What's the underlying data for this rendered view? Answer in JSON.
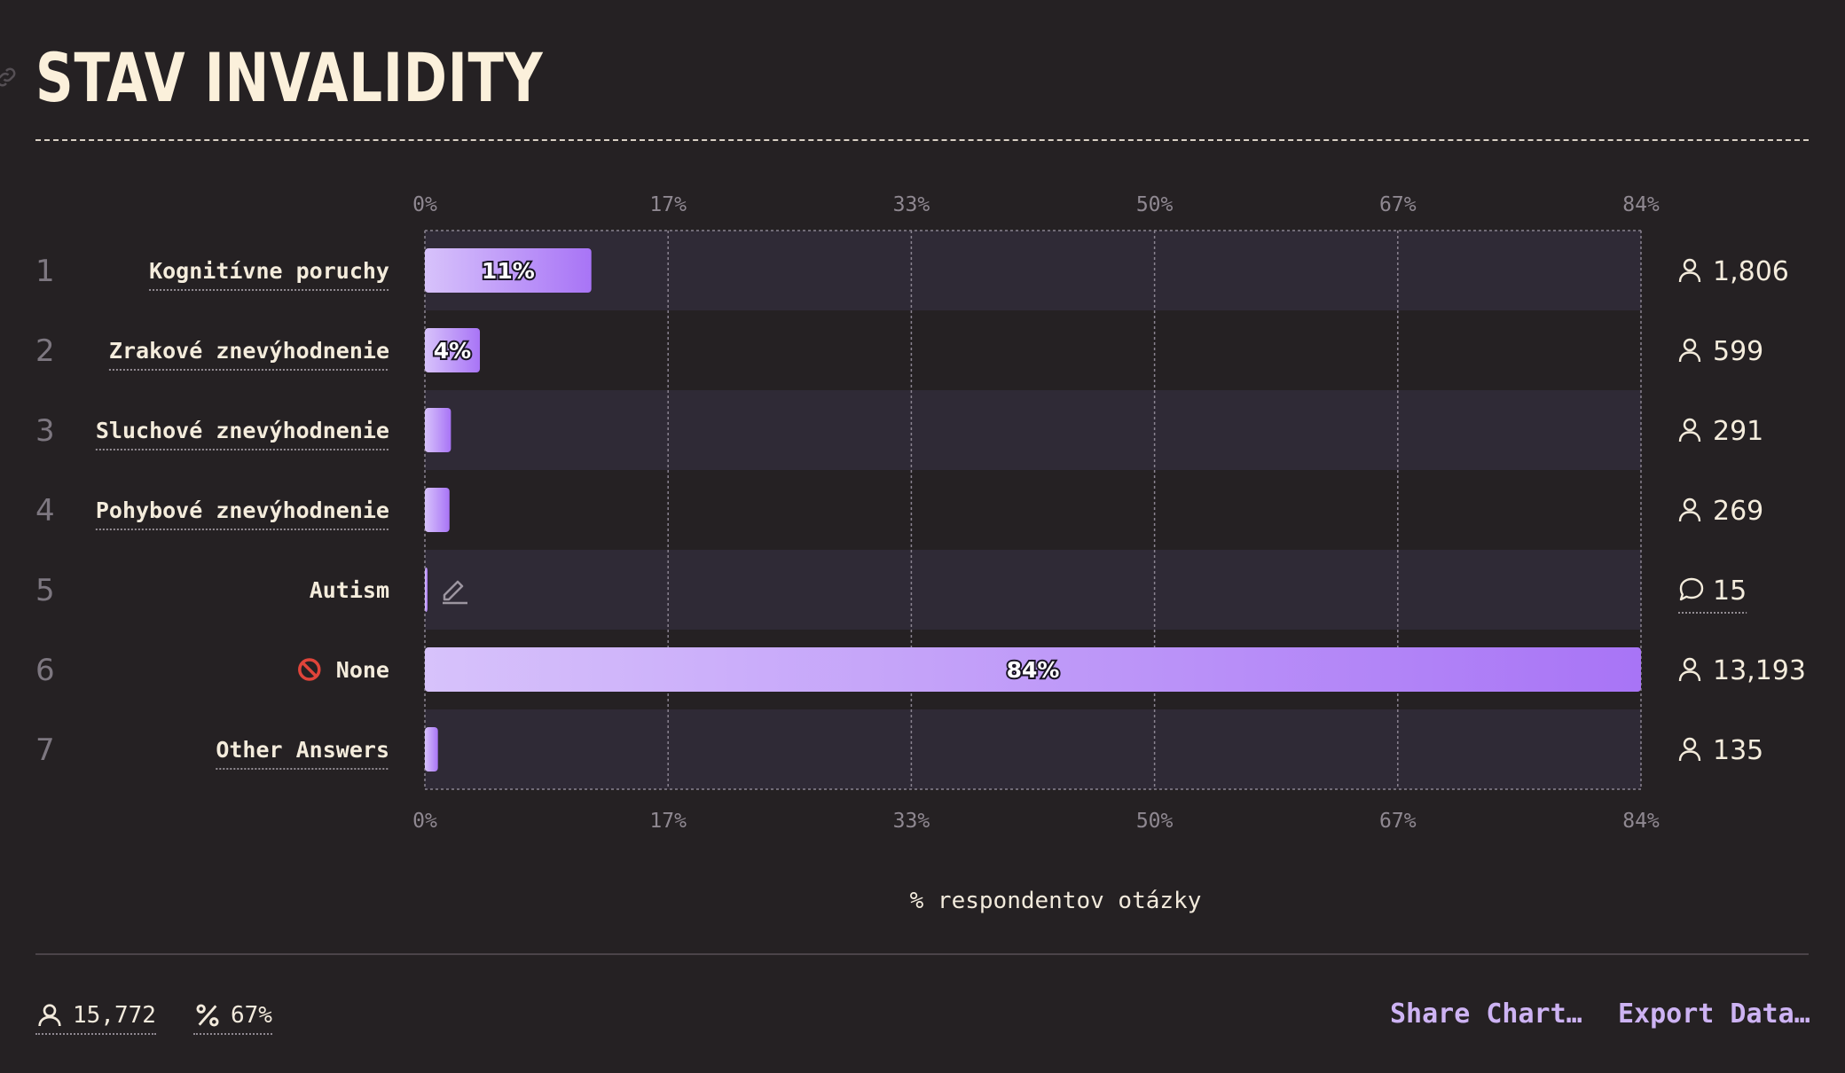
{
  "title": "STAV INVALIDITY",
  "chart_data": {
    "type": "bar",
    "orientation": "horizontal",
    "xlim": [
      0,
      84
    ],
    "x_ticks": [
      "0%",
      "17%",
      "33%",
      "50%",
      "67%",
      "84%"
    ],
    "xlabel": "% respondentov otázky",
    "categories": [
      {
        "rank": "1",
        "label": "Kognitívne poruchy",
        "percent": 11.5,
        "pct_label": "11%",
        "count": "1,806",
        "count_icon": "user-icon"
      },
      {
        "rank": "2",
        "label": "Zrakové znevýhodnenie",
        "percent": 3.8,
        "pct_label": "4%",
        "count": "599",
        "count_icon": "user-icon"
      },
      {
        "rank": "3",
        "label": "Sluchové znevýhodnenie",
        "percent": 1.8,
        "pct_label": "",
        "count": "291",
        "count_icon": "user-icon"
      },
      {
        "rank": "4",
        "label": "Pohybové znevýhodnenie",
        "percent": 1.7,
        "pct_label": "",
        "count": "269",
        "count_icon": "user-icon"
      },
      {
        "rank": "5",
        "label": "Autism",
        "percent": 0.1,
        "pct_label": "",
        "count": "15",
        "count_icon": "comment-icon"
      },
      {
        "rank": "6",
        "label": "None",
        "percent": 84,
        "pct_label": "84%",
        "count": "13,193",
        "count_icon": "user-icon"
      },
      {
        "rank": "7",
        "label": "Other Answers",
        "percent": 0.9,
        "pct_label": "",
        "count": "135",
        "count_icon": "user-icon"
      }
    ],
    "grid": true
  },
  "footer": {
    "respondents": "15,772",
    "percent": "67%",
    "share_label": "Share Chart…",
    "export_label": "Export Data…"
  },
  "colors": {
    "background": "#252123",
    "row_band": "#2f2a36",
    "bar_start": "#d7c2fb",
    "bar_end": "#a874f6",
    "accent_link": "#cdb3f3"
  }
}
